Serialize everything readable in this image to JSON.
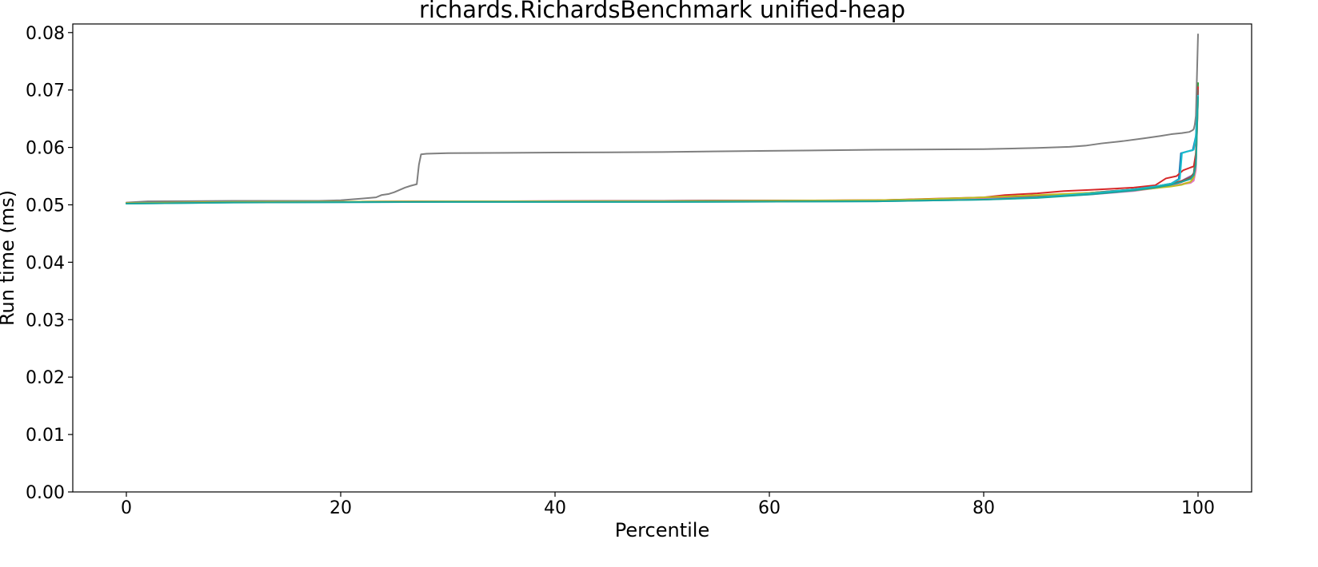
{
  "chart_data": {
    "type": "line",
    "title": "richards.RichardsBenchmark unified-heap",
    "xlabel": "Percentile",
    "ylabel": "Run time (ms)",
    "xlim": [
      -5,
      105
    ],
    "ylim": [
      0.0,
      0.0815
    ],
    "xticks": [
      0,
      20,
      40,
      60,
      80,
      100
    ],
    "xtick_labels": [
      "0",
      "20",
      "40",
      "60",
      "80",
      "100"
    ],
    "yticks": [
      0.0,
      0.01,
      0.02,
      0.03,
      0.04,
      0.05,
      0.06,
      0.07,
      0.08
    ],
    "ytick_labels": [
      "0.00",
      "0.01",
      "0.02",
      "0.03",
      "0.04",
      "0.05",
      "0.06",
      "0.07",
      "0.08"
    ],
    "grid": false,
    "legend": "none",
    "series": [
      {
        "color": "#1f77b4",
        "x": [
          0,
          10,
          30,
          50,
          70,
          80,
          85,
          90,
          94,
          96,
          97.5,
          98.2,
          98.4,
          99,
          99.5,
          99.8,
          100
        ],
        "y": [
          0.0503,
          0.0505,
          0.0506,
          0.0506,
          0.0507,
          0.051,
          0.0513,
          0.052,
          0.0527,
          0.0532,
          0.0537,
          0.0545,
          0.059,
          0.0593,
          0.0595,
          0.062,
          0.07
        ]
      },
      {
        "color": "#ff7f0e",
        "x": [
          0,
          10,
          30,
          50,
          70,
          80,
          85,
          90,
          94,
          96,
          97.5,
          98.5,
          99.3,
          99.6,
          99.8,
          100
        ],
        "y": [
          0.0503,
          0.0505,
          0.0506,
          0.0506,
          0.0508,
          0.0512,
          0.0515,
          0.052,
          0.0525,
          0.053,
          0.0533,
          0.0536,
          0.054,
          0.0545,
          0.057,
          0.069
        ]
      },
      {
        "color": "#2ca02c",
        "x": [
          0,
          10,
          30,
          50,
          70,
          80,
          85,
          90,
          94,
          96,
          97.5,
          98.5,
          99.3,
          99.6,
          99.8,
          100
        ],
        "y": [
          0.0503,
          0.0505,
          0.0506,
          0.0506,
          0.0507,
          0.051,
          0.0514,
          0.0521,
          0.0527,
          0.0531,
          0.0535,
          0.054,
          0.0548,
          0.0555,
          0.059,
          0.0712
        ]
      },
      {
        "color": "#d62728",
        "x": [
          0,
          10,
          30,
          50,
          70,
          80,
          82,
          85,
          87.5,
          90,
          94,
          96,
          97,
          98,
          98.6,
          99.3,
          99.6,
          99.8,
          100
        ],
        "y": [
          0.0503,
          0.0505,
          0.0506,
          0.0507,
          0.0508,
          0.0513,
          0.0517,
          0.052,
          0.0524,
          0.0526,
          0.053,
          0.0534,
          0.0546,
          0.055,
          0.056,
          0.0565,
          0.0567,
          0.059,
          0.0705
        ]
      },
      {
        "color": "#9467bd",
        "x": [
          0,
          10,
          30,
          50,
          70,
          80,
          85,
          90,
          94,
          96,
          97.5,
          98.5,
          99.3,
          99.6,
          99.8,
          100
        ],
        "y": [
          0.0503,
          0.0505,
          0.0506,
          0.0506,
          0.0507,
          0.051,
          0.0513,
          0.0519,
          0.0526,
          0.053,
          0.0535,
          0.0542,
          0.055,
          0.0552,
          0.057,
          0.0695
        ]
      },
      {
        "color": "#8c564b",
        "x": [
          0,
          10,
          30,
          50,
          70,
          80,
          85,
          90,
          94,
          96,
          97.5,
          98.5,
          99.3,
          99.6,
          99.8,
          100
        ],
        "y": [
          0.0503,
          0.0505,
          0.0506,
          0.0507,
          0.0508,
          0.0511,
          0.0515,
          0.0521,
          0.0527,
          0.0532,
          0.0537,
          0.0542,
          0.0548,
          0.0555,
          0.058,
          0.07
        ]
      },
      {
        "color": "#e377c2",
        "x": [
          0,
          10,
          30,
          50,
          70,
          80,
          85,
          90,
          94,
          96,
          97.5,
          98.5,
          99.3,
          99.6,
          99.8,
          100
        ],
        "y": [
          0.0503,
          0.0505,
          0.0506,
          0.0506,
          0.0507,
          0.051,
          0.0513,
          0.0518,
          0.0524,
          0.0529,
          0.0533,
          0.0536,
          0.0538,
          0.0542,
          0.056,
          0.069
        ]
      },
      {
        "color": "#7f7f7f",
        "x": [
          0,
          2,
          10,
          18,
          20,
          22,
          23.3,
          23.8,
          24.5,
          25,
          25.5,
          26,
          26.5,
          27.1,
          27.3,
          27.5,
          28,
          30,
          40,
          50,
          60,
          70,
          80,
          85,
          88,
          89.5,
          91,
          93,
          95,
          96.5,
          97.5,
          98.5,
          99.2,
          99.5,
          99.6,
          99.7,
          99.8,
          100
        ],
        "y": [
          0.0504,
          0.0506,
          0.0507,
          0.0507,
          0.0508,
          0.0511,
          0.0513,
          0.0517,
          0.0519,
          0.0522,
          0.0526,
          0.053,
          0.0533,
          0.0536,
          0.057,
          0.0588,
          0.0589,
          0.059,
          0.0591,
          0.0592,
          0.0594,
          0.0596,
          0.0597,
          0.0599,
          0.0601,
          0.0603,
          0.0607,
          0.0611,
          0.0616,
          0.062,
          0.0623,
          0.0625,
          0.0627,
          0.063,
          0.0632,
          0.064,
          0.0655,
          0.0797
        ]
      },
      {
        "color": "#bcbd22",
        "x": [
          0,
          10,
          30,
          50,
          70,
          75,
          80,
          85,
          90,
          94,
          96,
          97.5,
          98.5,
          99.3,
          99.6,
          99.8,
          100
        ],
        "y": [
          0.0503,
          0.0505,
          0.0506,
          0.0506,
          0.0508,
          0.051,
          0.0513,
          0.0517,
          0.0521,
          0.0525,
          0.0529,
          0.0532,
          0.0535,
          0.054,
          0.0548,
          0.057,
          0.0685
        ]
      },
      {
        "color": "#17becf",
        "x": [
          0,
          10,
          30,
          50,
          70,
          80,
          85,
          90,
          94,
          96,
          97.5,
          98.3,
          98.5,
          99.2,
          99.6,
          99.8,
          100
        ],
        "y": [
          0.0502,
          0.0504,
          0.0505,
          0.0505,
          0.0506,
          0.0509,
          0.0513,
          0.052,
          0.0527,
          0.0532,
          0.0537,
          0.0545,
          0.059,
          0.0594,
          0.0596,
          0.062,
          0.069
        ]
      },
      {
        "color": "#1aa39b",
        "x": [
          0,
          10,
          30,
          50,
          70,
          80,
          85,
          90,
          94,
          96,
          97.5,
          98.5,
          99.3,
          99.6,
          99.8,
          100
        ],
        "y": [
          0.0502,
          0.0504,
          0.0505,
          0.0505,
          0.0506,
          0.0509,
          0.0512,
          0.0518,
          0.0525,
          0.053,
          0.0535,
          0.054,
          0.0545,
          0.0552,
          0.057,
          0.0688
        ]
      }
    ]
  }
}
